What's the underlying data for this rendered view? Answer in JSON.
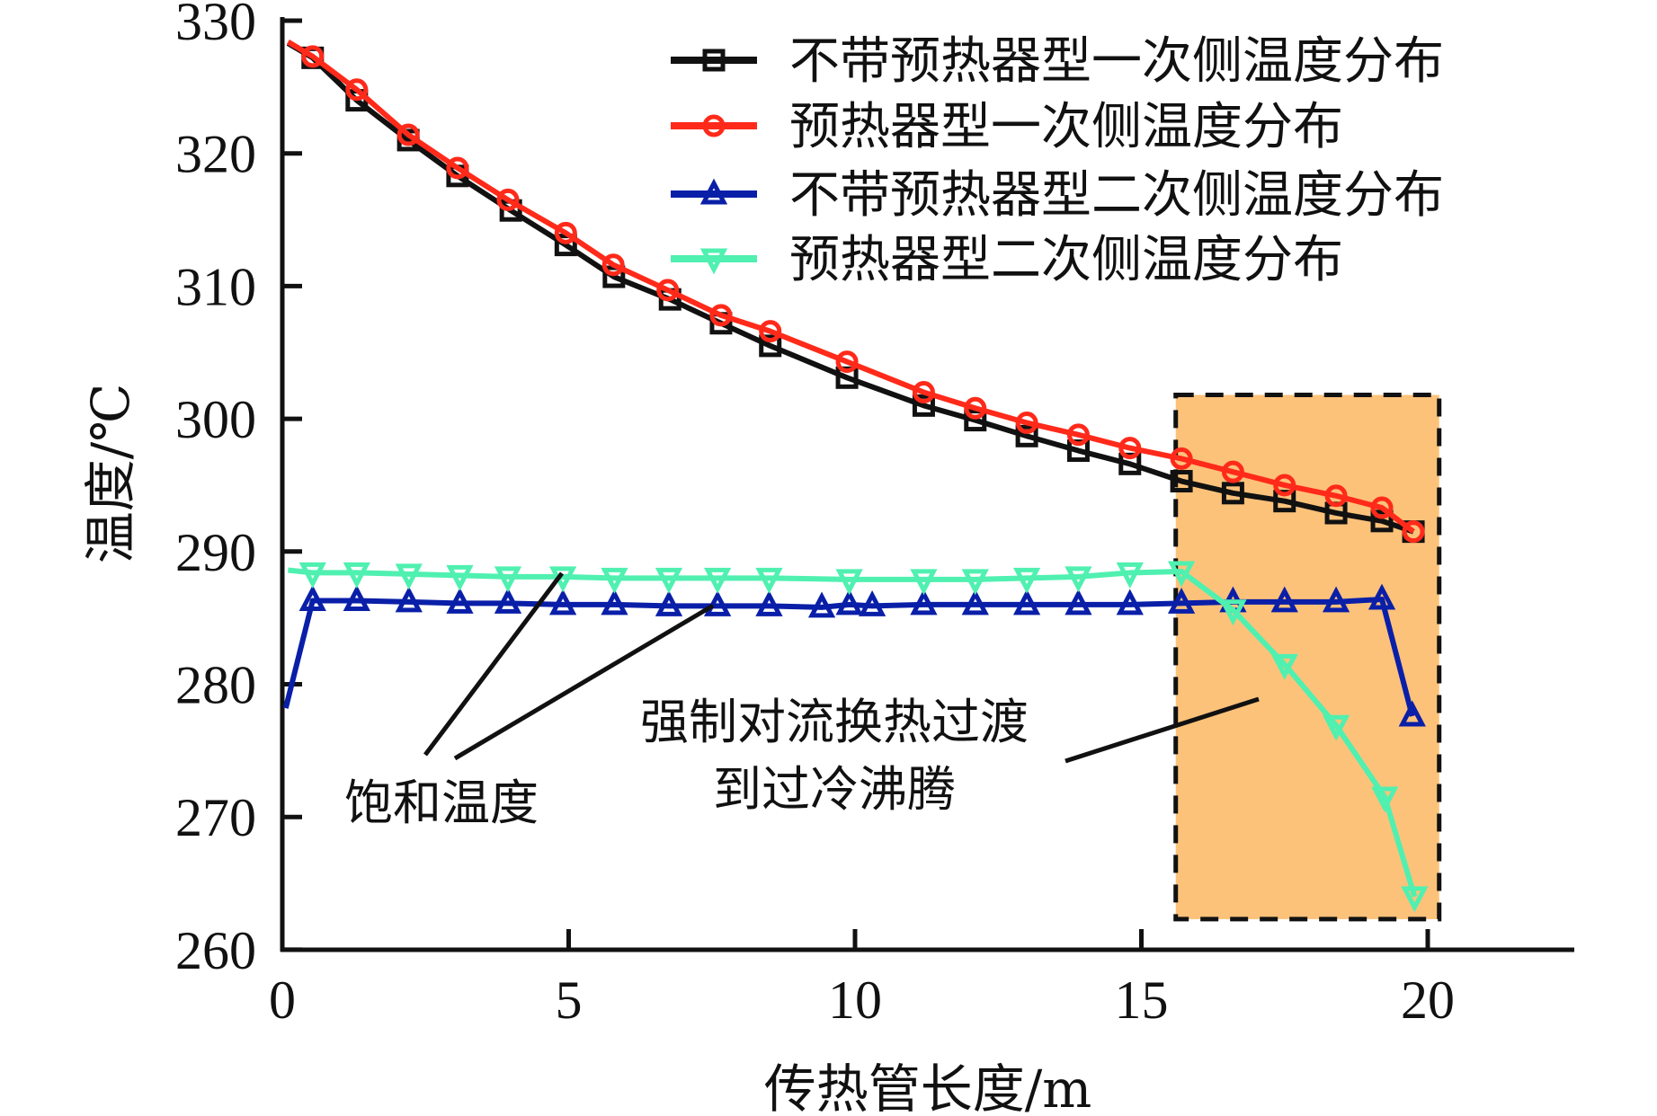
{
  "chart_data": {
    "type": "line",
    "title": "",
    "xlabel": "传热管长度/m",
    "ylabel": "温度/℃",
    "xlim": [
      0,
      22.5
    ],
    "ylim": [
      260,
      330
    ],
    "xticks": [
      0,
      5,
      10,
      15,
      20
    ],
    "yticks": [
      260,
      270,
      280,
      290,
      300,
      310,
      320,
      330
    ],
    "xtick_labels": [
      "0",
      "5",
      "10",
      "15",
      "20"
    ],
    "ytick_labels": [
      "260",
      "270",
      "280",
      "290",
      "300",
      "310",
      "320",
      "330"
    ],
    "grid": false,
    "legend_position": "top-right",
    "series": [
      {
        "name": "不带预热器型一次侧温度分布",
        "color": "#111111",
        "marker": "square",
        "line_start": [
          0.1,
          328.3
        ],
        "x": [
          0.53,
          1.3,
          2.2,
          3.06,
          3.99,
          4.95,
          5.79,
          6.77,
          7.66,
          8.52,
          9.86,
          11.2,
          12.1,
          13.0,
          13.9,
          14.8,
          15.7,
          16.6,
          17.5,
          18.4,
          19.2,
          19.75
        ],
        "y": [
          327.2,
          324.0,
          321.0,
          318.3,
          315.7,
          313.1,
          310.7,
          309.0,
          307.2,
          305.5,
          303.1,
          301.0,
          299.9,
          298.7,
          297.6,
          296.6,
          295.3,
          294.4,
          293.8,
          292.9,
          292.3,
          291.5
        ]
      },
      {
        "name": "预热器型一次侧温度分布",
        "color": "#ff2a1a",
        "marker": "circle",
        "line_start": [
          0.1,
          328.4
        ],
        "x": [
          0.53,
          1.3,
          2.2,
          3.06,
          3.94,
          4.95,
          5.78,
          6.73,
          7.66,
          8.52,
          9.86,
          11.2,
          12.1,
          13.0,
          13.9,
          14.8,
          15.7,
          16.6,
          17.5,
          18.4,
          19.2,
          19.75
        ],
        "y": [
          327.3,
          324.8,
          321.4,
          318.9,
          316.5,
          314.0,
          311.6,
          309.7,
          307.8,
          306.6,
          304.3,
          302.0,
          300.8,
          299.7,
          298.8,
          297.8,
          297.0,
          296.0,
          295.0,
          294.2,
          293.3,
          291.5
        ]
      },
      {
        "name": "不带预热器型二次侧温度分布",
        "color": "#0a1fa8",
        "marker": "triangle-up",
        "line_start": [
          0.06,
          278.2
        ],
        "x": [
          0.53,
          1.3,
          2.21,
          3.1,
          3.94,
          4.9,
          5.8,
          6.75,
          7.6,
          8.5,
          9.42,
          9.9,
          10.3,
          11.2,
          12.1,
          13.0,
          13.9,
          14.8,
          15.7,
          16.6,
          17.5,
          18.4,
          19.2,
          19.73
        ],
        "y": [
          286.3,
          286.3,
          286.2,
          286.1,
          286.1,
          286.0,
          286.0,
          285.9,
          285.9,
          285.9,
          285.8,
          286.0,
          285.9,
          286.0,
          286.0,
          286.0,
          286.0,
          286.0,
          286.1,
          286.2,
          286.2,
          286.2,
          286.4,
          277.6
        ]
      },
      {
        "name": "预热器型二次侧温度分布",
        "color": "#4ff0b0",
        "marker": "triangle-down",
        "line_start": [
          0.1,
          288.6
        ],
        "x": [
          0.53,
          1.3,
          2.21,
          3.1,
          3.94,
          4.9,
          5.8,
          6.75,
          7.6,
          8.5,
          9.9,
          11.2,
          12.1,
          13.0,
          13.9,
          14.8,
          15.7,
          16.6,
          17.5,
          18.4,
          19.25,
          19.77
        ],
        "y": [
          288.4,
          288.4,
          288.3,
          288.2,
          288.1,
          288.1,
          288.0,
          288.0,
          288.0,
          288.0,
          287.9,
          287.9,
          287.9,
          288.0,
          288.1,
          288.4,
          288.5,
          285.6,
          281.5,
          276.9,
          271.5,
          264.0
        ]
      }
    ],
    "highlight_region": {
      "x_range": [
        15.6,
        20.2
      ],
      "y_range": [
        262.3,
        301.8
      ],
      "fill": "#fdc27a",
      "border": "dashed"
    },
    "annotations": [
      {
        "text": "饱和温度",
        "lines": [],
        "text_anchor": [
          2.2,
          268.4
        ],
        "pointers": [
          {
            "from": [
              2.5,
              264.0
            ],
            "to": [
              4.9,
              288.0
            ]
          },
          {
            "from": [
              3.0,
              265.0
            ],
            "to": [
              7.5,
              286.0
            ]
          }
        ]
      },
      {
        "text": "强制对流换热过渡 到过冷沸腾",
        "lines": [
          "强制对流换热过渡",
          "到过冷沸腾"
        ],
        "pointers": [
          {
            "from": [
              13.67,
              272.7
            ],
            "to": [
              17.05,
              277.4
            ]
          }
        ]
      }
    ]
  }
}
